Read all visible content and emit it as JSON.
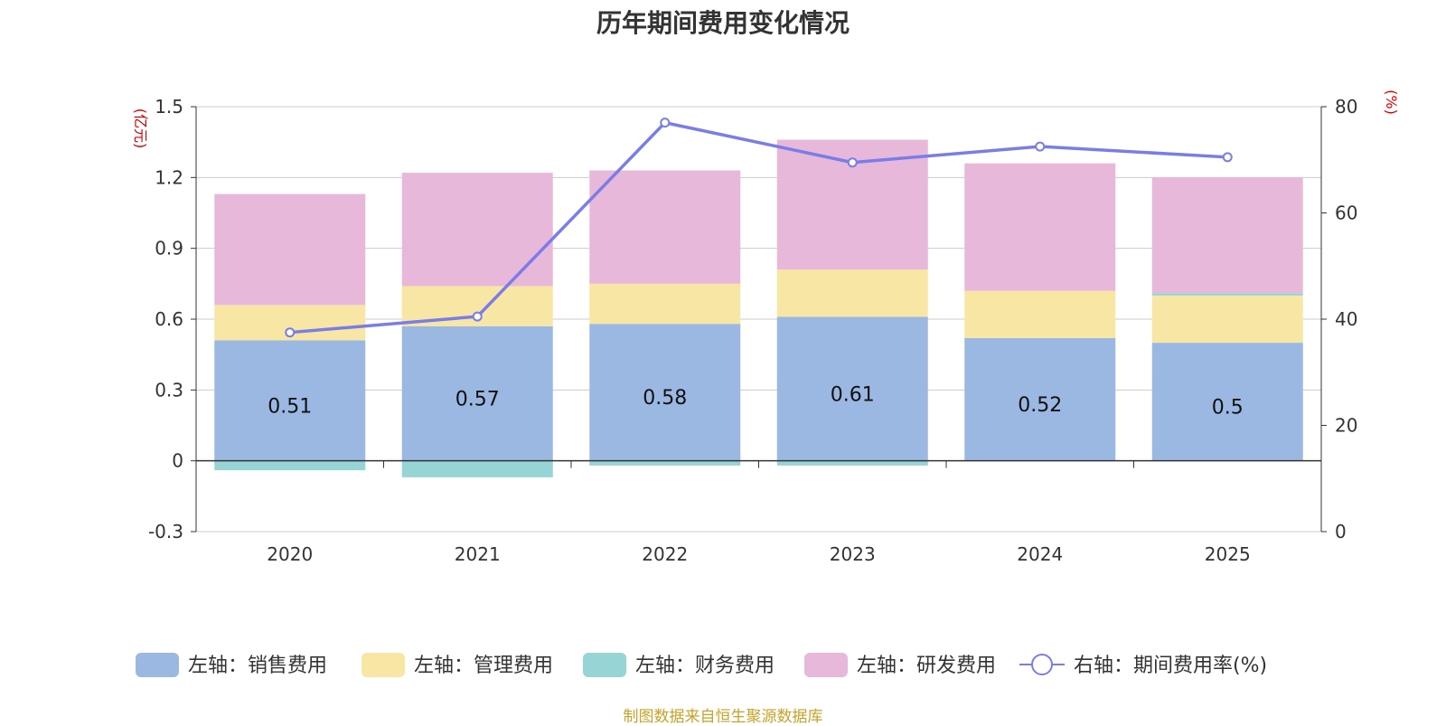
{
  "chart_data": {
    "type": "bar",
    "title": "历年期间费用变化情况",
    "source": "制图数据来自恒生聚源数据库",
    "categories": [
      "2020",
      "2021",
      "2022",
      "2023",
      "2024",
      "2025"
    ],
    "left_axis": {
      "unit": "(亿元)",
      "ylim": [
        -0.3,
        1.5
      ],
      "ticks": [
        "1.5",
        "1.2",
        "0.9",
        "0.6",
        "0.3",
        "0",
        "-0.3"
      ]
    },
    "right_axis": {
      "unit": "(%)",
      "ylim": [
        0,
        80
      ],
      "ticks": [
        "80",
        "60",
        "40",
        "20",
        "0"
      ]
    },
    "series": [
      {
        "name": "左轴：销售费用",
        "type": "bar",
        "color": "#9bb8e2",
        "values": [
          0.51,
          0.57,
          0.58,
          0.61,
          0.52,
          0.5
        ],
        "labels": [
          "0.51",
          "0.57",
          "0.58",
          "0.61",
          "0.52",
          "0.5"
        ]
      },
      {
        "name": "左轴：管理费用",
        "type": "bar",
        "color": "#f8e6a5",
        "values": [
          0.15,
          0.17,
          0.17,
          0.2,
          0.2,
          0.2
        ]
      },
      {
        "name": "左轴：财务费用",
        "type": "bar",
        "color": "#96d4d6",
        "values": [
          -0.04,
          -0.07,
          -0.02,
          -0.02,
          0.0,
          0.01
        ]
      },
      {
        "name": "左轴：研发费用",
        "type": "bar",
        "color": "#e8b8da",
        "values": [
          0.47,
          0.48,
          0.48,
          0.55,
          0.54,
          0.49
        ]
      },
      {
        "name": "右轴：期间费用率(%)",
        "type": "line",
        "color": "#7a7de8",
        "values": [
          37.5,
          40.5,
          77.0,
          69.5,
          72.5,
          70.5
        ]
      }
    ]
  }
}
